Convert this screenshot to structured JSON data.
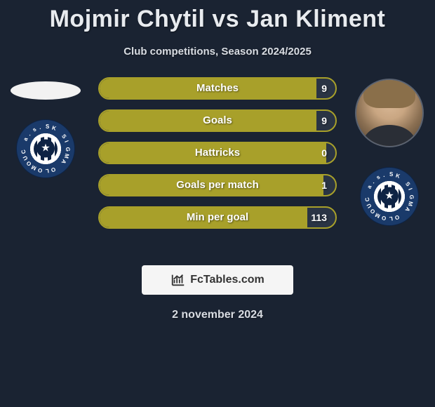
{
  "title": "Mojmir Chytil vs Jan Kliment",
  "subtitle": "Club competitions, Season 2024/2025",
  "date": "2 november 2024",
  "watermark_text": "FcTables.com",
  "colors": {
    "background": "#1a2332",
    "bar_fill": "#a8a02a",
    "bar_border": "#a8a02a",
    "bar_track": "#2a3444",
    "text": "#e8ebef",
    "watermark_bg": "#f5f5f5"
  },
  "players": {
    "left": {
      "name": "Mojmir Chytil",
      "club": "SK Sigma Olomouc"
    },
    "right": {
      "name": "Jan Kliment",
      "club": "SK Sigma Olomouc"
    }
  },
  "club_ring_text": "SK SIGMA OLOMOUC a.s.",
  "stats": [
    {
      "label": "Matches",
      "value": "9",
      "fill_pct": 92
    },
    {
      "label": "Goals",
      "value": "9",
      "fill_pct": 92
    },
    {
      "label": "Hattricks",
      "value": "0",
      "fill_pct": 96
    },
    {
      "label": "Goals per match",
      "value": "1",
      "fill_pct": 95
    },
    {
      "label": "Min per goal",
      "value": "113",
      "fill_pct": 88
    }
  ]
}
